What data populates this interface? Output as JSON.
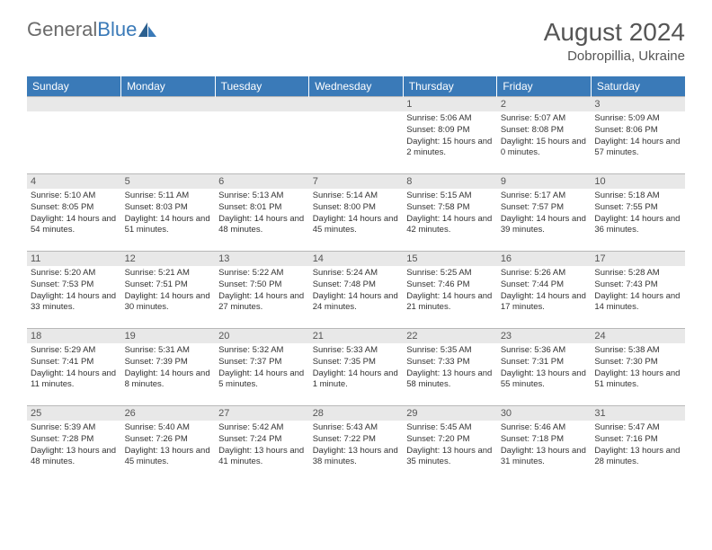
{
  "logo": {
    "part1": "General",
    "part2": "Blue"
  },
  "header": {
    "month_year": "August 2024",
    "location": "Dobropillia, Ukraine"
  },
  "colors": {
    "accent": "#3a7ab8",
    "day_header_bg": "#e8e8e8",
    "text": "#333333",
    "logo_gray": "#6b6b6b"
  },
  "weekdays": [
    "Sunday",
    "Monday",
    "Tuesday",
    "Wednesday",
    "Thursday",
    "Friday",
    "Saturday"
  ],
  "weeks": [
    [
      null,
      null,
      null,
      null,
      {
        "n": "1",
        "sr": "5:06 AM",
        "ss": "8:09 PM",
        "dl": "15 hours and 2 minutes."
      },
      {
        "n": "2",
        "sr": "5:07 AM",
        "ss": "8:08 PM",
        "dl": "15 hours and 0 minutes."
      },
      {
        "n": "3",
        "sr": "5:09 AM",
        "ss": "8:06 PM",
        "dl": "14 hours and 57 minutes."
      }
    ],
    [
      {
        "n": "4",
        "sr": "5:10 AM",
        "ss": "8:05 PM",
        "dl": "14 hours and 54 minutes."
      },
      {
        "n": "5",
        "sr": "5:11 AM",
        "ss": "8:03 PM",
        "dl": "14 hours and 51 minutes."
      },
      {
        "n": "6",
        "sr": "5:13 AM",
        "ss": "8:01 PM",
        "dl": "14 hours and 48 minutes."
      },
      {
        "n": "7",
        "sr": "5:14 AM",
        "ss": "8:00 PM",
        "dl": "14 hours and 45 minutes."
      },
      {
        "n": "8",
        "sr": "5:15 AM",
        "ss": "7:58 PM",
        "dl": "14 hours and 42 minutes."
      },
      {
        "n": "9",
        "sr": "5:17 AM",
        "ss": "7:57 PM",
        "dl": "14 hours and 39 minutes."
      },
      {
        "n": "10",
        "sr": "5:18 AM",
        "ss": "7:55 PM",
        "dl": "14 hours and 36 minutes."
      }
    ],
    [
      {
        "n": "11",
        "sr": "5:20 AM",
        "ss": "7:53 PM",
        "dl": "14 hours and 33 minutes."
      },
      {
        "n": "12",
        "sr": "5:21 AM",
        "ss": "7:51 PM",
        "dl": "14 hours and 30 minutes."
      },
      {
        "n": "13",
        "sr": "5:22 AM",
        "ss": "7:50 PM",
        "dl": "14 hours and 27 minutes."
      },
      {
        "n": "14",
        "sr": "5:24 AM",
        "ss": "7:48 PM",
        "dl": "14 hours and 24 minutes."
      },
      {
        "n": "15",
        "sr": "5:25 AM",
        "ss": "7:46 PM",
        "dl": "14 hours and 21 minutes."
      },
      {
        "n": "16",
        "sr": "5:26 AM",
        "ss": "7:44 PM",
        "dl": "14 hours and 17 minutes."
      },
      {
        "n": "17",
        "sr": "5:28 AM",
        "ss": "7:43 PM",
        "dl": "14 hours and 14 minutes."
      }
    ],
    [
      {
        "n": "18",
        "sr": "5:29 AM",
        "ss": "7:41 PM",
        "dl": "14 hours and 11 minutes."
      },
      {
        "n": "19",
        "sr": "5:31 AM",
        "ss": "7:39 PM",
        "dl": "14 hours and 8 minutes."
      },
      {
        "n": "20",
        "sr": "5:32 AM",
        "ss": "7:37 PM",
        "dl": "14 hours and 5 minutes."
      },
      {
        "n": "21",
        "sr": "5:33 AM",
        "ss": "7:35 PM",
        "dl": "14 hours and 1 minute."
      },
      {
        "n": "22",
        "sr": "5:35 AM",
        "ss": "7:33 PM",
        "dl": "13 hours and 58 minutes."
      },
      {
        "n": "23",
        "sr": "5:36 AM",
        "ss": "7:31 PM",
        "dl": "13 hours and 55 minutes."
      },
      {
        "n": "24",
        "sr": "5:38 AM",
        "ss": "7:30 PM",
        "dl": "13 hours and 51 minutes."
      }
    ],
    [
      {
        "n": "25",
        "sr": "5:39 AM",
        "ss": "7:28 PM",
        "dl": "13 hours and 48 minutes."
      },
      {
        "n": "26",
        "sr": "5:40 AM",
        "ss": "7:26 PM",
        "dl": "13 hours and 45 minutes."
      },
      {
        "n": "27",
        "sr": "5:42 AM",
        "ss": "7:24 PM",
        "dl": "13 hours and 41 minutes."
      },
      {
        "n": "28",
        "sr": "5:43 AM",
        "ss": "7:22 PM",
        "dl": "13 hours and 38 minutes."
      },
      {
        "n": "29",
        "sr": "5:45 AM",
        "ss": "7:20 PM",
        "dl": "13 hours and 35 minutes."
      },
      {
        "n": "30",
        "sr": "5:46 AM",
        "ss": "7:18 PM",
        "dl": "13 hours and 31 minutes."
      },
      {
        "n": "31",
        "sr": "5:47 AM",
        "ss": "7:16 PM",
        "dl": "13 hours and 28 minutes."
      }
    ]
  ],
  "labels": {
    "sunrise": "Sunrise: ",
    "sunset": "Sunset: ",
    "daylight": "Daylight: "
  }
}
